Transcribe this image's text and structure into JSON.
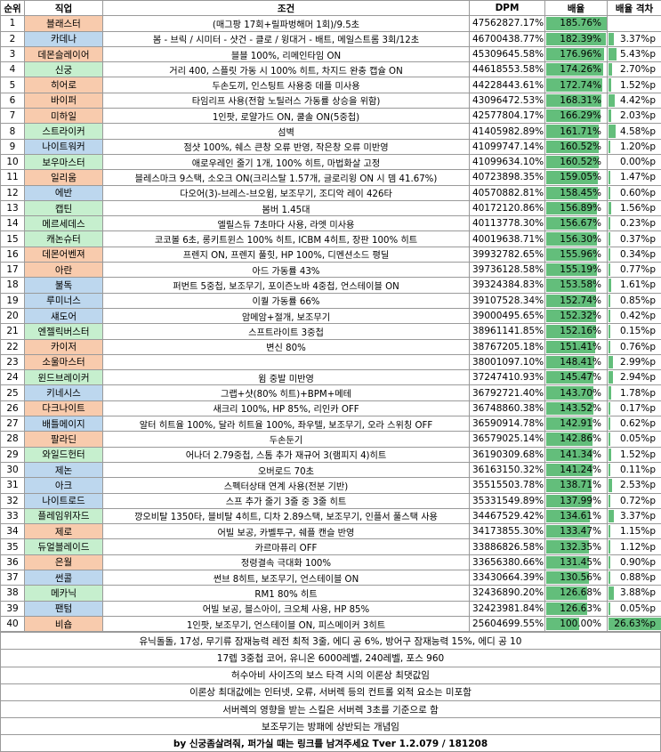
{
  "headers": {
    "rank": "순위",
    "job": "직업",
    "condition": "조건",
    "dpm": "DPM",
    "ratio": "배율",
    "gap": "배율 격차"
  },
  "colors": {
    "red": "#f8cbad",
    "blue": "#bdd7ee",
    "green": "#c6efce",
    "bar": "#63be7b",
    "gap_bar": "#63be7b"
  },
  "rows": [
    {
      "rank": "1",
      "job": "블래스터",
      "group": "red",
      "condition": "(매그팡 17회+릴파벙해머 1회)/9.5초",
      "dpm": "47562827.17%",
      "ratio": "185.76%",
      "ratio_value": 185.76,
      "gap": "",
      "gap_value": 0
    },
    {
      "rank": "2",
      "job": "카데나",
      "group": "blue",
      "condition": "봄 - 브릭 / 시미터 - 샷건 - 클로 / 윙대거 - 배트, 메일스트롬 3회/12초",
      "dpm": "46700438.77%",
      "ratio": "182.39%",
      "ratio_value": 182.39,
      "gap": "3.37%p",
      "gap_value": 3.37
    },
    {
      "rank": "3",
      "job": "데몬슬레이어",
      "group": "red",
      "condition": "블블 100%, 리메인타임 ON",
      "dpm": "45309645.58%",
      "ratio": "176.96%",
      "ratio_value": 176.96,
      "gap": "5.43%p",
      "gap_value": 5.43
    },
    {
      "rank": "4",
      "job": "신궁",
      "group": "green",
      "condition": "거리 400, 스플릿 가동 시 100% 히트, 차지드 완충 캡슐 ON",
      "dpm": "44618553.58%",
      "ratio": "174.26%",
      "ratio_value": 174.26,
      "gap": "2.70%p",
      "gap_value": 2.7
    },
    {
      "rank": "5",
      "job": "히어로",
      "group": "red",
      "condition": "두손도끼, 인스팅트 사용중 데플 미사용",
      "dpm": "44228443.61%",
      "ratio": "172.74%",
      "ratio_value": 172.74,
      "gap": "1.52%p",
      "gap_value": 1.52
    },
    {
      "rank": "6",
      "job": "바이퍼",
      "group": "red",
      "condition": "타임리프 사용(전함 노틸러스 가동률 상승을 위함)",
      "dpm": "43096472.53%",
      "ratio": "168.31%",
      "ratio_value": 168.31,
      "gap": "4.42%p",
      "gap_value": 4.42
    },
    {
      "rank": "7",
      "job": "미하일",
      "group": "red",
      "condition": "1인팟, 로얄가드 ON, 쿨솔 ON(5중첩)",
      "dpm": "42577804.17%",
      "ratio": "166.29%",
      "ratio_value": 166.29,
      "gap": "2.03%p",
      "gap_value": 2.03
    },
    {
      "rank": "8",
      "job": "스트라이커",
      "group": "green",
      "condition": "섬벽",
      "dpm": "41405982.89%",
      "ratio": "161.71%",
      "ratio_value": 161.71,
      "gap": "4.58%p",
      "gap_value": 4.58
    },
    {
      "rank": "9",
      "job": "나이트워커",
      "group": "blue",
      "condition": "점샷 100%, 쉐스 큰창 오류 반영, 작은창 오류 미반영",
      "dpm": "41099747.14%",
      "ratio": "160.52%",
      "ratio_value": 160.52,
      "gap": "1.20%p",
      "gap_value": 1.2
    },
    {
      "rank": "10",
      "job": "보우마스터",
      "group": "green",
      "condition": "애로우레인 줄기 1개, 100% 히트, 마법화살 고정",
      "dpm": "41099634.10%",
      "ratio": "160.52%",
      "ratio_value": 160.52,
      "gap": "0.00%p",
      "gap_value": 0.0
    },
    {
      "rank": "11",
      "job": "일리움",
      "group": "red",
      "condition": "블레스마크 9스택, 소오크 ON(크리스탈 1.57개, 글로리윙 ON 시 뎀 41.67%)",
      "dpm": "40723898.35%",
      "ratio": "159.05%",
      "ratio_value": 159.05,
      "gap": "1.47%p",
      "gap_value": 1.47
    },
    {
      "rank": "12",
      "job": "에반",
      "group": "blue",
      "condition": "다오어(3)-브레스-브오윔, 보조무기, 조디악 레이 426타",
      "dpm": "40570882.81%",
      "ratio": "158.45%",
      "ratio_value": 158.45,
      "gap": "0.60%p",
      "gap_value": 0.6
    },
    {
      "rank": "13",
      "job": "캡틴",
      "group": "green",
      "condition": "봄버 1.45대",
      "dpm": "40172120.86%",
      "ratio": "156.89%",
      "ratio_value": 156.89,
      "gap": "1.56%p",
      "gap_value": 1.56
    },
    {
      "rank": "14",
      "job": "메르세데스",
      "group": "green",
      "condition": "엘릴스듀 7초마다 사용, 라엣 미사용",
      "dpm": "40113778.30%",
      "ratio": "156.67%",
      "ratio_value": 156.67,
      "gap": "0.23%p",
      "gap_value": 0.23
    },
    {
      "rank": "15",
      "job": "캐논슈터",
      "group": "green",
      "condition": "코코볼 6초, 롱키트윈스 100% 히트, ICBM 4히트, 장판 100% 히트",
      "dpm": "40019638.71%",
      "ratio": "156.30%",
      "ratio_value": 156.3,
      "gap": "0.37%p",
      "gap_value": 0.37
    },
    {
      "rank": "16",
      "job": "데몬어벤져",
      "group": "red",
      "condition": "프렌지 ON, 프렌지 풀힛, HP 100%, 디멘션소드 평딜",
      "dpm": "39932782.65%",
      "ratio": "155.96%",
      "ratio_value": 155.96,
      "gap": "0.34%p",
      "gap_value": 0.34
    },
    {
      "rank": "17",
      "job": "아란",
      "group": "red",
      "condition": "아드 가동률 43%",
      "dpm": "39736128.58%",
      "ratio": "155.19%",
      "ratio_value": 155.19,
      "gap": "0.77%p",
      "gap_value": 0.77
    },
    {
      "rank": "18",
      "job": "불독",
      "group": "blue",
      "condition": "퍼번트 5중첩, 보조무기, 포이즌노바 4중첩, 언스테이블 ON",
      "dpm": "39324384.83%",
      "ratio": "153.58%",
      "ratio_value": 153.58,
      "gap": "1.61%p",
      "gap_value": 1.61
    },
    {
      "rank": "19",
      "job": "루미너스",
      "group": "blue",
      "condition": "이퀄 가동률 66%",
      "dpm": "39107528.34%",
      "ratio": "152.74%",
      "ratio_value": 152.74,
      "gap": "0.85%p",
      "gap_value": 0.85
    },
    {
      "rank": "20",
      "job": "섀도어",
      "group": "blue",
      "condition": "암메암+절개, 보조무기",
      "dpm": "39000495.65%",
      "ratio": "152.32%",
      "ratio_value": 152.32,
      "gap": "0.42%p",
      "gap_value": 0.42
    },
    {
      "rank": "21",
      "job": "엔젤릭버스터",
      "group": "green",
      "condition": "스프트라이트 3중첩",
      "dpm": "38961141.85%",
      "ratio": "152.16%",
      "ratio_value": 152.16,
      "gap": "0.15%p",
      "gap_value": 0.15
    },
    {
      "rank": "22",
      "job": "카이저",
      "group": "red",
      "condition": "변신 80%",
      "dpm": "38767205.18%",
      "ratio": "151.41%",
      "ratio_value": 151.41,
      "gap": "0.76%p",
      "gap_value": 0.76
    },
    {
      "rank": "23",
      "job": "소울마스터",
      "group": "red",
      "condition": "",
      "dpm": "38001097.10%",
      "ratio": "148.41%",
      "ratio_value": 148.41,
      "gap": "2.99%p",
      "gap_value": 2.99
    },
    {
      "rank": "24",
      "job": "윈드브레이커",
      "group": "green",
      "condition": "윔 중발 미반영",
      "dpm": "37247410.93%",
      "ratio": "145.47%",
      "ratio_value": 145.47,
      "gap": "2.94%p",
      "gap_value": 2.94
    },
    {
      "rank": "25",
      "job": "키네시스",
      "group": "blue",
      "condition": "그랩+샷(80% 히트)+BPM+메테",
      "dpm": "36792721.40%",
      "ratio": "143.70%",
      "ratio_value": 143.7,
      "gap": "1.78%p",
      "gap_value": 1.78
    },
    {
      "rank": "26",
      "job": "다크나이트",
      "group": "red",
      "condition": "새크리 100%, HP 85%, 리인카 OFF",
      "dpm": "36748860.38%",
      "ratio": "143.52%",
      "ratio_value": 143.52,
      "gap": "0.17%p",
      "gap_value": 0.17
    },
    {
      "rank": "27",
      "job": "배틀메이지",
      "group": "blue",
      "condition": "알터 히트율 100%, 달라 히트율 100%, 좌우텔, 보조무기, 오라 스위칭 OFF",
      "dpm": "36590914.78%",
      "ratio": "142.91%",
      "ratio_value": 142.91,
      "gap": "0.62%p",
      "gap_value": 0.62
    },
    {
      "rank": "28",
      "job": "팔라딘",
      "group": "red",
      "condition": "두손둔기",
      "dpm": "36579025.14%",
      "ratio": "142.86%",
      "ratio_value": 142.86,
      "gap": "0.05%p",
      "gap_value": 0.05
    },
    {
      "rank": "29",
      "job": "와일드헌터",
      "group": "green",
      "condition": "어나더 2.79중첩, 스톰 추가 재규어 3(램피지 4)히트",
      "dpm": "36190309.68%",
      "ratio": "141.34%",
      "ratio_value": 141.34,
      "gap": "1.52%p",
      "gap_value": 1.52
    },
    {
      "rank": "30",
      "job": "제논",
      "group": "blue",
      "condition": "오버로드 70초",
      "dpm": "36163150.32%",
      "ratio": "141.24%",
      "ratio_value": 141.24,
      "gap": "0.11%p",
      "gap_value": 0.11
    },
    {
      "rank": "31",
      "job": "아크",
      "group": "blue",
      "condition": "스펙터상태 연계 사용(전분 기반)",
      "dpm": "35515503.78%",
      "ratio": "138.71%",
      "ratio_value": 138.71,
      "gap": "2.53%p",
      "gap_value": 2.53
    },
    {
      "rank": "32",
      "job": "나이트로드",
      "group": "blue",
      "condition": "스프 추가 줄기 3줄 중 3줄 히트",
      "dpm": "35331549.89%",
      "ratio": "137.99%",
      "ratio_value": 137.99,
      "gap": "0.72%p",
      "gap_value": 0.72
    },
    {
      "rank": "33",
      "job": "플레임위자드",
      "group": "green",
      "condition": "깡오비탈 1350타, 블비탈 4히트, 디차 2.89스택, 보조무기, 인플서 풀스택 사용",
      "dpm": "34467529.42%",
      "ratio": "134.61%",
      "ratio_value": 134.61,
      "gap": "3.37%p",
      "gap_value": 3.37
    },
    {
      "rank": "34",
      "job": "제로",
      "group": "red",
      "condition": "어빌 보공, 카벨투구, 쉐플 캔슬 반영",
      "dpm": "34173855.30%",
      "ratio": "133.47%",
      "ratio_value": 133.47,
      "gap": "1.15%p",
      "gap_value": 1.15
    },
    {
      "rank": "35",
      "job": "듀얼블레이드",
      "group": "green",
      "condition": "카르마퓨리 OFF",
      "dpm": "33886826.58%",
      "ratio": "132.35%",
      "ratio_value": 132.35,
      "gap": "1.12%p",
      "gap_value": 1.12
    },
    {
      "rank": "36",
      "job": "은월",
      "group": "red",
      "condition": "정령결속 극대화 100%",
      "dpm": "33656380.66%",
      "ratio": "131.45%",
      "ratio_value": 131.45,
      "gap": "0.90%p",
      "gap_value": 0.9
    },
    {
      "rank": "37",
      "job": "썬콜",
      "group": "blue",
      "condition": "썬브 8히트, 보조무기, 언스테이블 ON",
      "dpm": "33430664.39%",
      "ratio": "130.56%",
      "ratio_value": 130.56,
      "gap": "0.88%p",
      "gap_value": 0.88
    },
    {
      "rank": "38",
      "job": "메카닉",
      "group": "green",
      "condition": "RM1 80% 히트",
      "dpm": "32436890.20%",
      "ratio": "126.68%",
      "ratio_value": 126.68,
      "gap": "3.88%p",
      "gap_value": 3.88
    },
    {
      "rank": "39",
      "job": "팬텀",
      "group": "blue",
      "condition": "어빌 보공, 블스아이, 크오체 사용, HP 85%",
      "dpm": "32423981.84%",
      "ratio": "126.63%",
      "ratio_value": 126.63,
      "gap": "0.05%p",
      "gap_value": 0.05
    },
    {
      "rank": "40",
      "job": "비숍",
      "group": "red",
      "condition": "1인팟, 보조무기, 언스테이블 ON, 피스메이커 3히트",
      "dpm": "25604699.55%",
      "ratio": "100.00%",
      "ratio_value": 100.0,
      "gap": "26.63%p",
      "gap_value": 26.63
    }
  ],
  "notes": [
    {
      "text": "유닉돌돌, 17성, 무기류 잠재능력 레전 최적 3줄, 에디 공 6%, 방어구 잠재능력 15%, 에디 공 10",
      "bold": false
    },
    {
      "text": "17렙 3중첩 코어, 유니온 6000레벨, 240레벨, 포스 960",
      "bold": false
    },
    {
      "text": "허수아비 사이즈의 보스 타격 시의 이론상 최댓값임",
      "bold": false
    },
    {
      "text": "이론상 최대값에는 인터넷, 오류, 서버렉 등의 컨트롤 외적 요소는 미포함",
      "bold": false
    },
    {
      "text": "서버렉의 영향을 받는 스킬은 서버렉 3초를 기준으로 함",
      "bold": false
    },
    {
      "text": "보조무기는 방패에 상반되는 개념임",
      "bold": false
    },
    {
      "text": "by 신궁좀살려줘, 퍼가실 때는 링크를 남겨주세요 Tver 1.2.079 / 181208",
      "bold": true
    }
  ]
}
